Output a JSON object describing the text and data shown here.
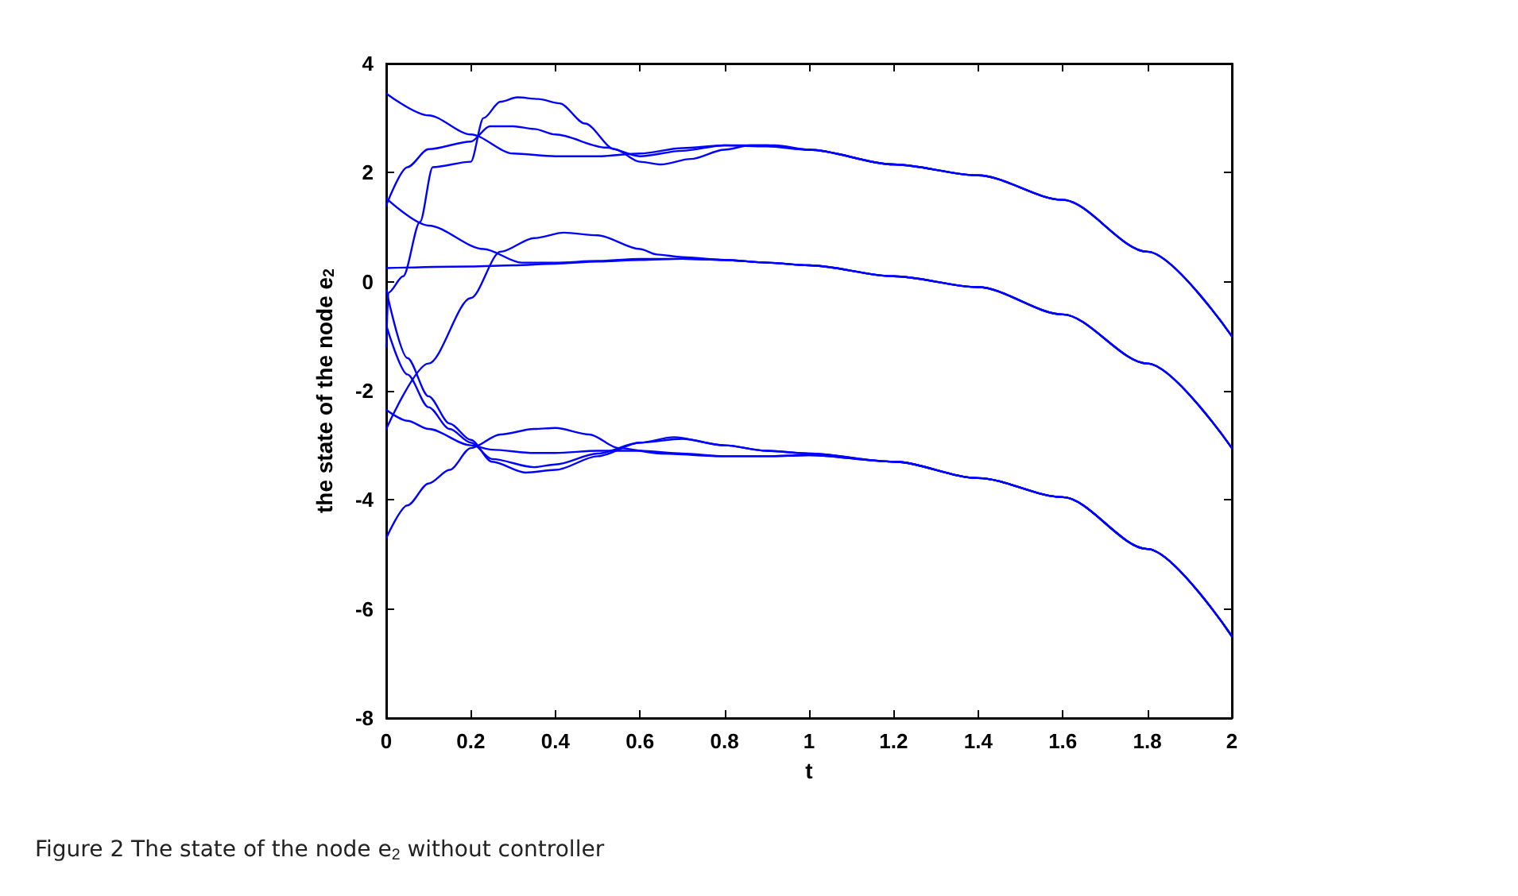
{
  "chart_data": {
    "type": "line",
    "xlabel": "t",
    "ylabel": "the state of the node e$_{2}$",
    "xlim": [
      0,
      2
    ],
    "ylim": [
      -8,
      4
    ],
    "xticks": [
      0,
      0.2,
      0.4,
      0.6,
      0.8,
      1,
      1.2,
      1.4,
      1.6,
      1.8,
      2
    ],
    "yticks": [
      -8,
      -6,
      -4,
      -2,
      0,
      2,
      4
    ],
    "marker": "none",
    "line_style": "solid",
    "annotations": [
      "Figure 2 The state of the node e$_{2}$ without controller"
    ],
    "series": [
      {
        "color": "#0000ff",
        "x": [
          0,
          0.1,
          0.2,
          0.3,
          0.4,
          0.5,
          0.6,
          0.7,
          0.8,
          0.9,
          1,
          1.2,
          1.4,
          1.6,
          1.8,
          2
        ],
        "values": [
          3.45,
          3.05,
          2.7,
          2.35,
          2.3,
          2.3,
          2.35,
          2.45,
          2.5,
          2.5,
          2.42,
          2.15,
          1.95,
          1.5,
          0.55,
          -1
        ]
      },
      {
        "color": "#0000ff",
        "x": [
          0,
          0.05,
          0.1,
          0.2,
          0.245,
          0.3,
          0.35,
          0.4,
          0.52,
          0.6,
          0.7,
          0.8,
          0.9,
          1,
          1.2,
          1.4,
          1.6,
          1.8,
          2
        ],
        "values": [
          1.4,
          2.1,
          2.43,
          2.57,
          2.85,
          2.85,
          2.8,
          2.7,
          2.46,
          2.3,
          2.4,
          2.5,
          2.48,
          2.42,
          2.15,
          1.95,
          1.5,
          0.55,
          -1
        ]
      },
      {
        "color": "#0000ff",
        "x": [
          0,
          0.005,
          0.04,
          0.08,
          0.11,
          0.2,
          0.23,
          0.27,
          0.31,
          0.36,
          0.41,
          0.47,
          0.54,
          0.6,
          0.65,
          0.72,
          0.8,
          0.86,
          0.92,
          1,
          1.2,
          1.4,
          1.6,
          1.8,
          2
        ],
        "values": [
          -1.2,
          -0.2,
          0.1,
          1.1,
          2.1,
          2.2,
          3,
          3.3,
          3.38,
          3.35,
          3.27,
          2.9,
          2.43,
          2.2,
          2.15,
          2.25,
          2.42,
          2.5,
          2.5,
          2.42,
          2.15,
          1.95,
          1.5,
          0.55,
          -1
        ]
      },
      {
        "color": "#0000ff",
        "x": [
          0,
          0.1,
          0.2,
          0.27,
          0.35,
          0.42,
          0.5,
          0.6,
          0.64,
          0.7,
          0.8,
          0.9,
          1,
          1.2,
          1.4,
          1.6,
          1.8,
          2
        ],
        "values": [
          -2.7,
          -1.5,
          -0.3,
          0.55,
          0.8,
          0.9,
          0.85,
          0.6,
          0.5,
          0.45,
          0.4,
          0.35,
          0.3,
          0.1,
          -0.1,
          -0.6,
          -1.5,
          -3.05
        ]
      },
      {
        "color": "#0000ff",
        "x": [
          0,
          0.1,
          0.23,
          0.32,
          0.4,
          0.5,
          0.6,
          0.7,
          0.8,
          0.9,
          1,
          1.2,
          1.4,
          1.6,
          1.8,
          2
        ],
        "values": [
          1.53,
          1.03,
          0.6,
          0.35,
          0.35,
          0.38,
          0.42,
          0.42,
          0.4,
          0.35,
          0.3,
          0.1,
          -0.1,
          -0.6,
          -1.5,
          -3.05
        ]
      },
      {
        "color": "#0000ff",
        "x": [
          0,
          0.2,
          0.3,
          0.4,
          0.5,
          0.6,
          0.7,
          0.8,
          0.9,
          1,
          1.2,
          1.4,
          1.6,
          1.8,
          2
        ],
        "values": [
          0.25,
          0.28,
          0.3,
          0.33,
          0.37,
          0.4,
          0.42,
          0.4,
          0.35,
          0.3,
          0.1,
          -0.1,
          -0.6,
          -1.5,
          -3.05
        ]
      },
      {
        "color": "#0000ff",
        "x": [
          0,
          0.05,
          0.1,
          0.15,
          0.2,
          0.25,
          0.33,
          0.4,
          0.5,
          0.6,
          0.68,
          0.8,
          0.9,
          1,
          1.2,
          1.4,
          1.6,
          1.8,
          2
        ],
        "values": [
          -0.15,
          -1.4,
          -2.1,
          -2.6,
          -2.9,
          -3.3,
          -3.5,
          -3.45,
          -3.2,
          -2.95,
          -2.85,
          -3,
          -3.1,
          -3.15,
          -3.3,
          -3.6,
          -3.95,
          -4.9,
          -6.5
        ]
      },
      {
        "color": "#0000ff",
        "x": [
          0,
          0.05,
          0.1,
          0.15,
          0.2,
          0.25,
          0.35,
          0.4,
          0.5,
          0.6,
          0.7,
          0.8,
          0.9,
          1,
          1.2,
          1.4,
          1.6,
          1.8,
          2
        ],
        "values": [
          -0.8,
          -1.7,
          -2.3,
          -2.7,
          -2.95,
          -3.25,
          -3.4,
          -3.35,
          -3.15,
          -2.95,
          -2.88,
          -3,
          -3.1,
          -3.15,
          -3.3,
          -3.6,
          -3.95,
          -4.9,
          -6.5
        ]
      },
      {
        "color": "#0000ff",
        "x": [
          0,
          0.05,
          0.1,
          0.2,
          0.25,
          0.35,
          0.4,
          0.5,
          0.6,
          0.7,
          0.8,
          0.9,
          1,
          1.2,
          1.4,
          1.6,
          1.8,
          2
        ],
        "values": [
          -2.35,
          -2.55,
          -2.7,
          -3,
          -3.08,
          -3.14,
          -3.14,
          -3.1,
          -3.1,
          -3.15,
          -3.2,
          -3.2,
          -3.18,
          -3.3,
          -3.6,
          -3.95,
          -4.9,
          -6.5
        ]
      },
      {
        "color": "#0000ff",
        "x": [
          0,
          0.05,
          0.1,
          0.15,
          0.2,
          0.27,
          0.35,
          0.4,
          0.48,
          0.55,
          0.65,
          0.8,
          0.9,
          1,
          1.2,
          1.4,
          1.6,
          1.8,
          2
        ],
        "values": [
          -4.7,
          -4.1,
          -3.7,
          -3.45,
          -3.05,
          -2.8,
          -2.7,
          -2.68,
          -2.8,
          -3.05,
          -3.15,
          -3.2,
          -3.2,
          -3.18,
          -3.3,
          -3.6,
          -3.95,
          -4.9,
          -6.5
        ]
      }
    ]
  }
}
